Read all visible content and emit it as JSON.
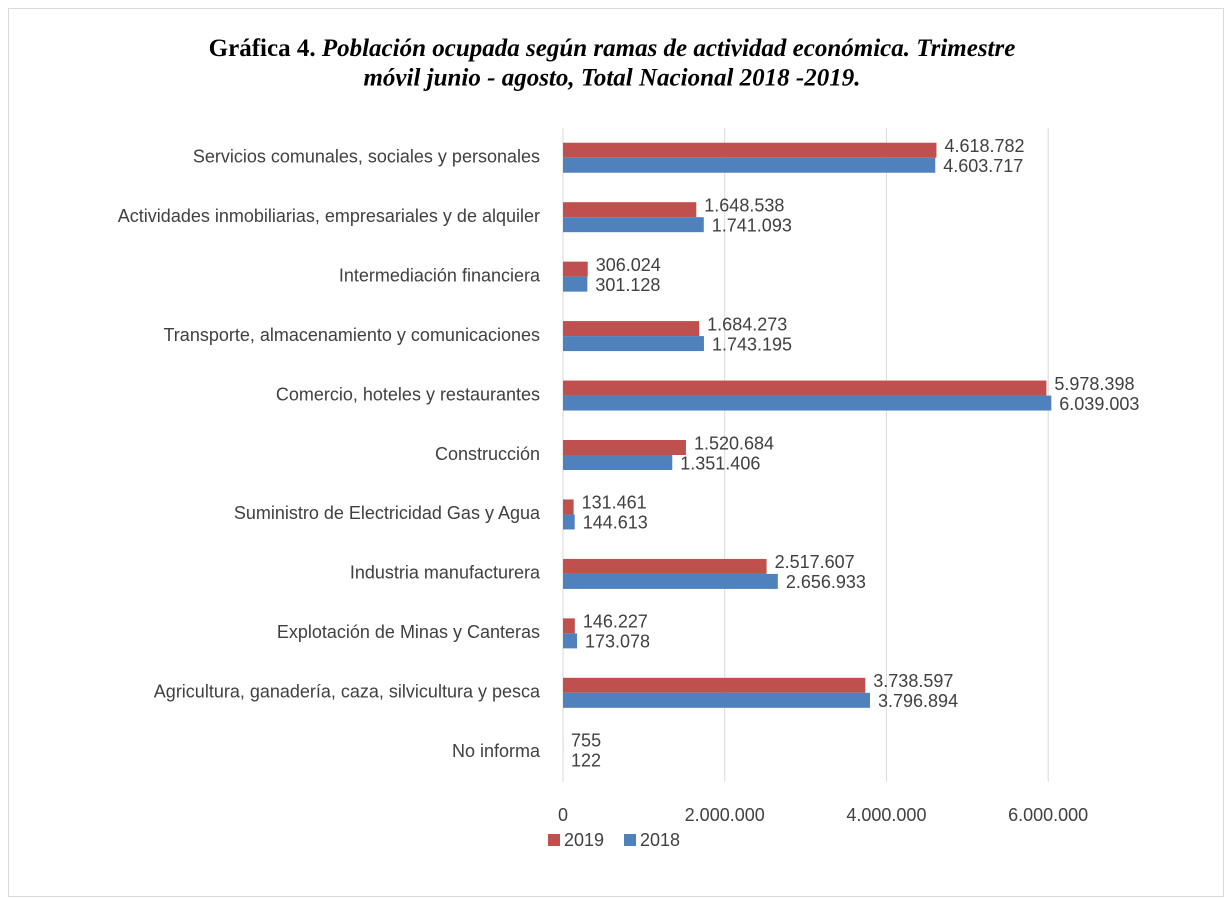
{
  "chart_data": {
    "type": "bar",
    "orientation": "horizontal",
    "title": "Gráfica 4.",
    "subtitle": [
      "Población ocupada según ramas de actividad económica. Trimestre",
      "móvil junio - agosto, Total Nacional 2018 -2019."
    ],
    "categories": [
      "Servicios comunales, sociales y personales",
      "Actividades inmobiliarias, empresariales y de alquiler",
      "Intermediación financiera",
      "Transporte, almacenamiento y comunicaciones",
      "Comercio, hoteles y restaurantes",
      "Construcción",
      "Suministro de Electricidad Gas y Agua",
      "Industria manufacturera",
      "Explotación de Minas y Canteras",
      "Agricultura, ganadería, caza, silvicultura y pesca",
      "No informa"
    ],
    "series": [
      {
        "name": "2019",
        "color": "#c0504d",
        "values": [
          4618782,
          1648538,
          306024,
          1684273,
          5978398,
          1520684,
          131461,
          2517607,
          146227,
          3738597,
          755
        ],
        "value_labels": [
          "4.618.782",
          "1.648.538",
          "306.024",
          "1.684.273",
          "5.978.398",
          "1.520.684",
          "131.461",
          "2.517.607",
          "146.227",
          "3.738.597",
          "755"
        ]
      },
      {
        "name": "2018",
        "color": "#4f81bd",
        "values": [
          4603717,
          1741093,
          301128,
          1743195,
          6039003,
          1351406,
          144613,
          2656933,
          173078,
          3796894,
          122
        ],
        "value_labels": [
          "4.603.717",
          "1.741.093",
          "301.128",
          "1.743.195",
          "6.039.003",
          "1.351.406",
          "144.613",
          "2.656.933",
          "173.078",
          "3.796.894",
          "122"
        ]
      }
    ],
    "xlim": [
      0,
      7000000
    ],
    "xticks": [
      0,
      {
        "value": 2000000,
        "label": "2.000.000"
      },
      {
        "value": 4000000,
        "label": "4.000.000"
      },
      {
        "value": 6000000,
        "label": "6.000.000"
      }
    ],
    "grid": true,
    "legend": "bottom"
  }
}
